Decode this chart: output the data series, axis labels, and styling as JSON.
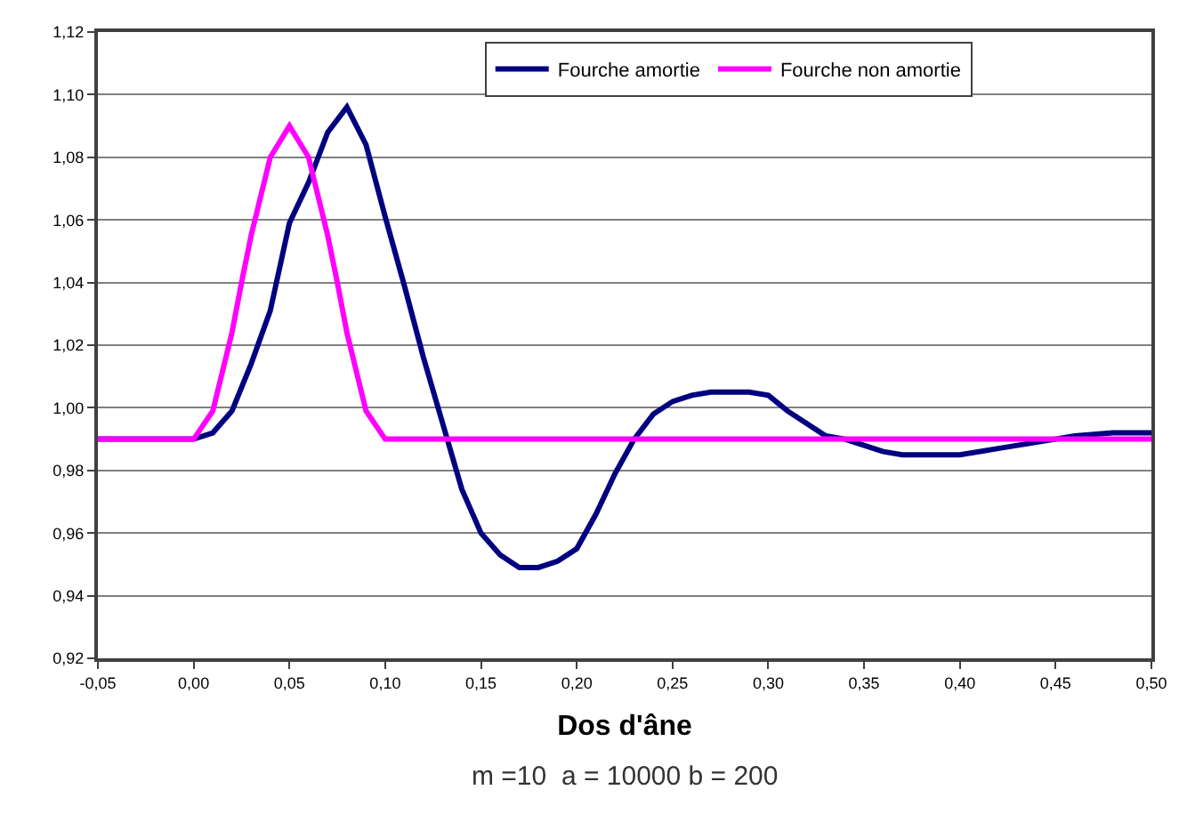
{
  "chart_data": {
    "type": "line",
    "xlabel": "Dos d'âne",
    "annotations": [
      "m =10  a = 10000 b = 200"
    ],
    "xlim": [
      -0.05,
      0.5
    ],
    "ylim": [
      0.92,
      1.12
    ],
    "xticks": [
      {
        "value": -0.05,
        "label": "-0,05"
      },
      {
        "value": 0.0,
        "label": "0,00"
      },
      {
        "value": 0.05,
        "label": "0,05"
      },
      {
        "value": 0.1,
        "label": "0,10"
      },
      {
        "value": 0.15,
        "label": "0,15"
      },
      {
        "value": 0.2,
        "label": "0,20"
      },
      {
        "value": 0.25,
        "label": "0,25"
      },
      {
        "value": 0.3,
        "label": "0,30"
      },
      {
        "value": 0.35,
        "label": "0,35"
      },
      {
        "value": 0.4,
        "label": "0,40"
      },
      {
        "value": 0.45,
        "label": "0,45"
      },
      {
        "value": 0.5,
        "label": "0,50"
      }
    ],
    "yticks": [
      {
        "value": 0.92,
        "label": "0,92"
      },
      {
        "value": 0.94,
        "label": "0,94"
      },
      {
        "value": 0.96,
        "label": "0,96"
      },
      {
        "value": 0.98,
        "label": "0,98"
      },
      {
        "value": 1.0,
        "label": "1,00"
      },
      {
        "value": 1.02,
        "label": "1,02"
      },
      {
        "value": 1.04,
        "label": "1,04"
      },
      {
        "value": 1.06,
        "label": "1,06"
      },
      {
        "value": 1.08,
        "label": "1,08"
      },
      {
        "value": 1.1,
        "label": "1,10"
      },
      {
        "value": 1.12,
        "label": "1,12"
      }
    ],
    "grid": "y",
    "legend": "top right",
    "marker": "none",
    "line_style": "solid",
    "series": [
      {
        "name": "Fourche amortie",
        "color": "#000080",
        "x": [
          -0.05,
          0.0,
          0.01,
          0.02,
          0.03,
          0.04,
          0.05,
          0.06,
          0.07,
          0.08,
          0.09,
          0.1,
          0.11,
          0.12,
          0.13,
          0.14,
          0.15,
          0.16,
          0.17,
          0.18,
          0.19,
          0.2,
          0.21,
          0.22,
          0.23,
          0.24,
          0.25,
          0.26,
          0.27,
          0.28,
          0.29,
          0.3,
          0.31,
          0.32,
          0.33,
          0.34,
          0.35,
          0.36,
          0.37,
          0.38,
          0.39,
          0.4,
          0.42,
          0.44,
          0.46,
          0.48,
          0.5
        ],
        "values": [
          0.99,
          0.99,
          0.992,
          0.999,
          1.014,
          1.031,
          1.059,
          1.072,
          1.088,
          1.096,
          1.084,
          1.061,
          1.039,
          1.016,
          0.995,
          0.974,
          0.96,
          0.953,
          0.949,
          0.949,
          0.951,
          0.955,
          0.966,
          0.979,
          0.99,
          0.998,
          1.002,
          1.004,
          1.005,
          1.005,
          1.005,
          1.004,
          0.999,
          0.995,
          0.991,
          0.99,
          0.988,
          0.986,
          0.985,
          0.985,
          0.985,
          0.985,
          0.987,
          0.989,
          0.991,
          0.992,
          0.992
        ]
      },
      {
        "name": "Fourche non amortie",
        "color": "#ff00ff",
        "x": [
          -0.05,
          0.0,
          0.01,
          0.02,
          0.025,
          0.03,
          0.04,
          0.05,
          0.06,
          0.07,
          0.075,
          0.08,
          0.09,
          0.1,
          0.5
        ],
        "values": [
          0.99,
          0.99,
          0.999,
          1.024,
          1.04,
          1.055,
          1.08,
          1.09,
          1.08,
          1.055,
          1.04,
          1.024,
          0.999,
          0.99,
          0.99
        ]
      }
    ]
  }
}
